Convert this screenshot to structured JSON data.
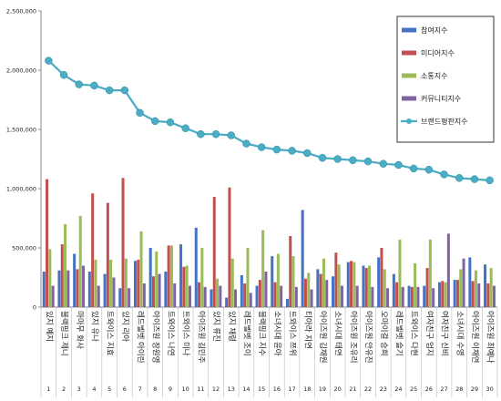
{
  "chart_data": {
    "type": "bar",
    "categories": [
      "있지 예지",
      "블랙핑크 제니",
      "마마무 화사",
      "있지 유나",
      "트와이스 지효",
      "있지 리아",
      "레드벨벳 아이린",
      "아이즈원 장원영",
      "트와이스 나연",
      "트와이스 미나",
      "아이즈원 김민주",
      "있지 류진",
      "있지 채령",
      "레드벨벳 조이",
      "블랙핑크 지수",
      "소녀시대 윤아",
      "트와이스 쯔위",
      "티아라 지연",
      "아이즈원 김채원",
      "소녀시대 태연",
      "아이즈원 조유리",
      "아이즈원 안유진",
      "오마이걸 승희",
      "레드벨벳 슬기",
      "트와이스 다현",
      "여자친구 엄지",
      "여자친구 신비",
      "소녀시대 수영",
      "아이즈원 이채연",
      "아이즈원 최예나"
    ],
    "x_numbers": [
      "1",
      "2",
      "3",
      "4",
      "5",
      "6",
      "7",
      "8",
      "9",
      "10",
      "11",
      "12",
      "13",
      "14",
      "15",
      "16",
      "17",
      "18",
      "19",
      "20",
      "21",
      "22",
      "23",
      "24",
      "25",
      "26",
      "27",
      "28",
      "29",
      "30"
    ],
    "series": [
      {
        "name": "참여지수",
        "color": "#4472C4",
        "values": [
          300000,
          310000,
          450000,
          300000,
          280000,
          160000,
          390000,
          500000,
          300000,
          530000,
          670000,
          150000,
          80000,
          270000,
          180000,
          430000,
          70000,
          820000,
          320000,
          260000,
          380000,
          350000,
          420000,
          280000,
          180000,
          180000,
          210000,
          230000,
          420000,
          360000
        ]
      },
      {
        "name": "미디어지수",
        "color": "#C0504D",
        "values": [
          1080000,
          530000,
          320000,
          960000,
          880000,
          1090000,
          400000,
          260000,
          520000,
          340000,
          210000,
          930000,
          1010000,
          200000,
          230000,
          210000,
          600000,
          240000,
          280000,
          460000,
          390000,
          330000,
          500000,
          210000,
          170000,
          330000,
          220000,
          230000,
          220000,
          200000
        ]
      },
      {
        "name": "소통지수",
        "color": "#9BBB59",
        "values": [
          490000,
          700000,
          770000,
          400000,
          400000,
          410000,
          640000,
          470000,
          520000,
          350000,
          500000,
          240000,
          410000,
          500000,
          650000,
          450000,
          430000,
          290000,
          410000,
          360000,
          380000,
          350000,
          320000,
          570000,
          370000,
          570000,
          210000,
          320000,
          310000,
          330000
        ]
      },
      {
        "name": "커뮤니티지수",
        "color": "#8064A2",
        "values": [
          180000,
          310000,
          350000,
          180000,
          250000,
          160000,
          200000,
          280000,
          200000,
          180000,
          170000,
          180000,
          150000,
          120000,
          300000,
          180000,
          170000,
          150000,
          230000,
          180000,
          180000,
          170000,
          160000,
          170000,
          170000,
          160000,
          620000,
          410000,
          200000,
          180000
        ]
      },
      {
        "name": "브랜드평판지수",
        "color": "#4BACC6",
        "values": [
          2080000,
          1960000,
          1880000,
          1870000,
          1830000,
          1830000,
          1640000,
          1570000,
          1560000,
          1510000,
          1460000,
          1460000,
          1450000,
          1380000,
          1350000,
          1330000,
          1320000,
          1300000,
          1260000,
          1250000,
          1240000,
          1230000,
          1210000,
          1200000,
          1170000,
          1160000,
          1120000,
          1090000,
          1080000,
          1070000
        ]
      }
    ],
    "y_ticks": [
      "0",
      "500,000",
      "1,000,000",
      "1,500,000",
      "2,000,000",
      "2,500,000"
    ],
    "ylim": [
      0,
      2500000
    ],
    "legend_position": "top-right",
    "grid": false
  }
}
